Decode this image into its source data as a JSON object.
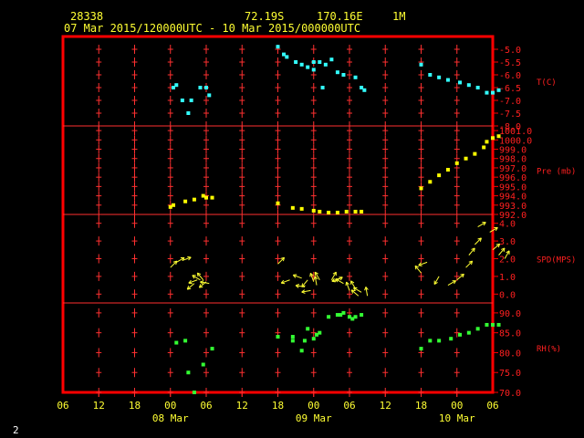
{
  "header": {
    "station": "28338",
    "lat": "72.19S",
    "lon": "170.16E",
    "height": "1M",
    "period": "07 Mar 2015/120000UTC - 10 Mar 2015/000000UTC"
  },
  "page_number": "2",
  "colors": {
    "frame": "#ff0000",
    "grid": "#ff3030",
    "text": "#ffff33",
    "label": "#ff2020",
    "temp": "#33ffff",
    "pressure": "#ffff00",
    "wind": "#ffff33",
    "rh": "#33ff33"
  },
  "chart_data": {
    "type": "scatter",
    "x_axis": {
      "tick_labels": [
        "06",
        "12",
        "18",
        "00",
        "06",
        "12",
        "18",
        "00",
        "06",
        "12",
        "18",
        "00",
        "06"
      ],
      "date_labels": [
        {
          "label": "08 Mar",
          "at_tick": 3
        },
        {
          "label": "09 Mar",
          "at_tick": 7
        },
        {
          "label": "10 Mar",
          "at_tick": 11
        }
      ],
      "range_hours": [
        -6,
        66
      ]
    },
    "panels": [
      {
        "name": "T(C)",
        "ylim": [
          -8.0,
          -4.5
        ],
        "ticks": [
          "-5.0",
          "-5.5",
          "-6.0",
          "-6.5",
          "-7.0",
          "-7.5",
          "-8.0"
        ],
        "tick_values": [
          -5.0,
          -5.5,
          -6.0,
          -6.5,
          -7.0,
          -7.5,
          -8.0
        ],
        "color": "temp",
        "points": [
          [
            12.5,
            -6.5
          ],
          [
            13,
            -6.4
          ],
          [
            14,
            -7.0
          ],
          [
            15,
            -7.5
          ],
          [
            15.5,
            -7.0
          ],
          [
            17,
            -6.5
          ],
          [
            18,
            -6.5
          ],
          [
            18.5,
            -6.8
          ],
          [
            30,
            -4.9
          ],
          [
            31,
            -5.2
          ],
          [
            31.5,
            -5.3
          ],
          [
            33,
            -5.5
          ],
          [
            34,
            -5.6
          ],
          [
            35,
            -5.7
          ],
          [
            36,
            -5.5
          ],
          [
            36,
            -5.8
          ],
          [
            37,
            -5.5
          ],
          [
            37.5,
            -6.5
          ],
          [
            38,
            -5.6
          ],
          [
            39,
            -5.4
          ],
          [
            40,
            -5.9
          ],
          [
            41,
            -6.0
          ],
          [
            43,
            -6.1
          ],
          [
            44,
            -6.5
          ],
          [
            44.5,
            -6.6
          ],
          [
            54,
            -5.6
          ],
          [
            55.5,
            -6.0
          ],
          [
            57,
            -6.1
          ],
          [
            58.5,
            -6.2
          ],
          [
            60.5,
            -6.3
          ],
          [
            62,
            -6.4
          ],
          [
            63.5,
            -6.5
          ],
          [
            65,
            -6.7
          ],
          [
            66,
            -6.7
          ],
          [
            67,
            -6.6
          ]
        ]
      },
      {
        "name": "Pre (mb)",
        "ylim": [
          992.0,
          1001.5
        ],
        "ticks": [
          "1001.0",
          "1000.0",
          "999.0",
          "998.0",
          "997.0",
          "996.0",
          "995.0",
          "994.0",
          "993.0",
          "992.0"
        ],
        "tick_values": [
          1001.0,
          1000.0,
          999.0,
          998.0,
          997.0,
          996.0,
          995.0,
          994.0,
          993.0,
          992.0
        ],
        "color": "pressure",
        "points": [
          [
            12,
            992.8
          ],
          [
            12.5,
            993.0
          ],
          [
            14.5,
            993.4
          ],
          [
            16,
            993.6
          ],
          [
            17.5,
            994.0
          ],
          [
            18,
            993.8
          ],
          [
            19,
            993.8
          ],
          [
            30,
            993.2
          ],
          [
            32.5,
            992.7
          ],
          [
            34,
            992.6
          ],
          [
            36,
            992.4
          ],
          [
            37,
            992.3
          ],
          [
            38.5,
            992.2
          ],
          [
            40,
            992.2
          ],
          [
            41.5,
            992.3
          ],
          [
            43,
            992.3
          ],
          [
            44,
            992.3
          ],
          [
            54,
            994.8
          ],
          [
            55.5,
            995.5
          ],
          [
            57,
            996.2
          ],
          [
            58.5,
            996.8
          ],
          [
            60,
            997.5
          ],
          [
            61.5,
            998.0
          ],
          [
            63,
            998.5
          ],
          [
            64.5,
            999.2
          ],
          [
            65,
            999.8
          ],
          [
            66,
            1000.2
          ],
          [
            67,
            1000.4
          ]
        ]
      },
      {
        "name": "SPD(MPS)",
        "ylim": [
          -0.5,
          4.5
        ],
        "ticks": [
          "4.0",
          "3.0",
          "2.0",
          "1.0",
          "0.0"
        ],
        "tick_values": [
          4.0,
          3.0,
          2.0,
          1.0,
          0.0
        ],
        "color": "wind",
        "points": [
          [
            12,
            1.5
          ],
          [
            13,
            1.8
          ],
          [
            14,
            1.9
          ],
          [
            16,
            0.6
          ],
          [
            16.5,
            0.8
          ],
          [
            17,
            0.8
          ],
          [
            17.5,
            0.8
          ],
          [
            18,
            0.7
          ],
          [
            18.5,
            0.6
          ],
          [
            30,
            1.7
          ],
          [
            32,
            0.8
          ],
          [
            34,
            0.9
          ],
          [
            34.5,
            0.4
          ],
          [
            35,
            0.8
          ],
          [
            35.5,
            0.2
          ],
          [
            36,
            0.7
          ],
          [
            36.5,
            0.5
          ],
          [
            37,
            0.8
          ],
          [
            39,
            0.8
          ],
          [
            39.5,
            0.7
          ],
          [
            40.5,
            0.9
          ],
          [
            41,
            0.6
          ],
          [
            42,
            0.2
          ],
          [
            43,
            0.3
          ],
          [
            43.5,
            -0.1
          ],
          [
            44,
            0.1
          ],
          [
            45,
            -0.1
          ],
          [
            54,
            1.2
          ],
          [
            55,
            1.8
          ],
          [
            57,
            1.0
          ],
          [
            58.5,
            0.5
          ],
          [
            60,
            0.8
          ],
          [
            61.5,
            1.5
          ],
          [
            62,
            2.2
          ],
          [
            63,
            2.8
          ],
          [
            63.5,
            3.8
          ],
          [
            65.5,
            3.5
          ],
          [
            66,
            2.5
          ],
          [
            67,
            2.2
          ],
          [
            68,
            2.0
          ]
        ],
        "arrow_dirs_deg": [
          45,
          30,
          20,
          220,
          200,
          150,
          130,
          220,
          170,
          45,
          200,
          160,
          170,
          230,
          190,
          110,
          100,
          120,
          60,
          30,
          200,
          150,
          110,
          120,
          140,
          150,
          100,
          130,
          200,
          240,
          30,
          40,
          45,
          50,
          45,
          30,
          30,
          40,
          50,
          60
        ]
      },
      {
        "name": "RH(%)",
        "ylim": [
          70.0,
          92.5
        ],
        "ticks": [
          "90.0",
          "85.0",
          "80.0",
          "75.0",
          "70.0"
        ],
        "tick_values": [
          90.0,
          85.0,
          80.0,
          75.0,
          70.0
        ],
        "color": "rh",
        "points": [
          [
            13,
            82.5
          ],
          [
            14.5,
            83.0
          ],
          [
            15,
            75.0
          ],
          [
            16,
            70.0
          ],
          [
            17.5,
            77.0
          ],
          [
            19,
            81.0
          ],
          [
            30,
            84.0
          ],
          [
            32.5,
            83.0
          ],
          [
            32.5,
            84.0
          ],
          [
            34,
            80.5
          ],
          [
            34.5,
            83.0
          ],
          [
            35,
            86.0
          ],
          [
            36,
            83.5
          ],
          [
            36.5,
            84.5
          ],
          [
            37,
            85.0
          ],
          [
            38.5,
            89.0
          ],
          [
            40,
            89.5
          ],
          [
            40.5,
            89.5
          ],
          [
            41,
            90.0
          ],
          [
            42,
            89.0
          ],
          [
            42.5,
            88.5
          ],
          [
            43,
            89.0
          ],
          [
            44,
            89.5
          ],
          [
            54,
            81.0
          ],
          [
            55.5,
            83.0
          ],
          [
            57,
            83.0
          ],
          [
            59,
            83.5
          ],
          [
            60.5,
            84.5
          ],
          [
            62,
            85.0
          ],
          [
            63.5,
            86.0
          ],
          [
            65,
            87.0
          ],
          [
            66,
            87.0
          ],
          [
            67,
            87.0
          ]
        ]
      }
    ]
  }
}
